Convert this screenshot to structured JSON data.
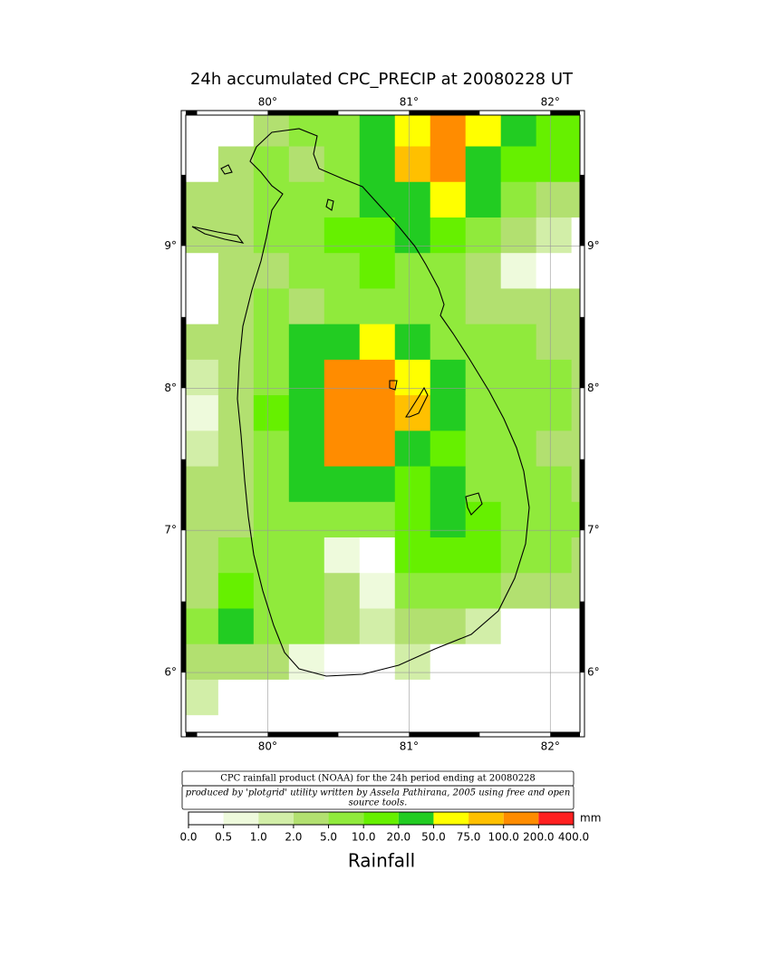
{
  "chart_data": {
    "type": "heatmap",
    "title": "24h accumulated CPC_PRECIP  at 20080228 UT",
    "xlim": [
      79.42,
      82.21
    ],
    "ylim": [
      5.58,
      9.92
    ],
    "xticks": [
      {
        "value": 80,
        "label": "80°"
      },
      {
        "value": 81,
        "label": "81°"
      },
      {
        "value": 82,
        "label": "82°"
      }
    ],
    "yticks": [
      {
        "value": 6,
        "label": "6°"
      },
      {
        "value": 7,
        "label": "7°"
      },
      {
        "value": 8,
        "label": "8°"
      },
      {
        "value": 9,
        "label": "9°"
      }
    ],
    "grid": true,
    "lon": [
      79.525,
      79.775,
      80.025,
      80.275,
      80.525,
      80.775,
      81.025,
      81.275,
      81.525,
      81.775,
      82.025,
      82.275
    ],
    "lat": [
      9.825,
      9.575,
      9.325,
      9.075,
      8.825,
      8.575,
      8.325,
      8.075,
      7.825,
      7.575,
      7.325,
      7.075,
      6.825,
      6.575,
      6.325,
      6.075,
      5.825,
      5.575
    ],
    "values": [
      [
        0,
        0,
        3,
        5,
        8,
        25,
        60,
        120,
        70,
        25,
        15,
        10
      ],
      [
        0,
        2,
        5,
        4,
        8,
        30,
        80,
        110,
        30,
        15,
        10,
        10
      ],
      [
        2,
        3,
        6,
        5,
        8,
        20,
        40,
        60,
        20,
        8,
        4,
        3
      ],
      [
        2,
        4,
        6,
        8,
        10,
        15,
        20,
        15,
        6,
        2,
        1,
        0
      ],
      [
        0,
        2,
        4,
        5,
        8,
        10,
        8,
        5,
        3,
        0.5,
        0,
        0
      ],
      [
        0,
        3,
        5,
        4,
        8,
        8,
        6,
        5,
        4,
        3,
        3,
        2
      ],
      [
        2,
        3,
        5,
        20,
        30,
        60,
        40,
        8,
        5,
        5,
        4,
        3
      ],
      [
        1,
        4,
        8,
        30,
        120,
        130,
        60,
        20,
        6,
        5,
        5,
        4
      ],
      [
        0.5,
        3,
        10,
        40,
        150,
        150,
        80,
        25,
        8,
        5,
        5,
        4
      ],
      [
        1,
        3,
        8,
        25,
        120,
        100,
        40,
        12,
        6,
        5,
        4,
        3
      ],
      [
        3,
        4,
        6,
        20,
        30,
        25,
        15,
        20,
        8,
        6,
        5,
        4
      ],
      [
        3,
        4,
        6,
        8,
        5,
        8,
        10,
        25,
        12,
        7,
        6,
        5
      ],
      [
        3,
        5,
        6,
        5,
        0.5,
        0.3,
        12,
        15,
        10,
        6,
        5,
        4
      ],
      [
        4,
        10,
        8,
        6,
        3,
        0.5,
        8,
        8,
        6,
        4,
        3,
        2
      ],
      [
        5,
        20,
        8,
        5,
        2,
        1,
        3,
        2,
        1,
        0,
        0,
        0
      ],
      [
        2,
        4,
        3,
        0.5,
        0,
        0,
        1,
        0,
        0,
        0,
        0,
        0
      ],
      [
        1,
        0,
        0,
        0,
        0,
        0,
        0,
        0,
        0,
        0,
        0,
        0
      ],
      [
        0,
        0,
        0,
        0,
        0,
        0,
        0,
        0,
        0,
        0,
        0,
        0
      ]
    ],
    "levels": [
      {
        "value": 0,
        "label": "0.0"
      },
      {
        "value": 0.5,
        "label": "0.5"
      },
      {
        "value": 1,
        "label": "1.0"
      },
      {
        "value": 2,
        "label": "2.0"
      },
      {
        "value": 5,
        "label": "5.0"
      },
      {
        "value": 10,
        "label": "10.0"
      },
      {
        "value": 20,
        "label": "20.0"
      },
      {
        "value": 50,
        "label": "50.0"
      },
      {
        "value": 75,
        "label": "75.0"
      },
      {
        "value": 100,
        "label": "100.0"
      },
      {
        "value": 200,
        "label": "200.0"
      },
      {
        "value": 400,
        "label": "400.0"
      }
    ],
    "colors": [
      "#ffffff",
      "#eefadc",
      "#d2eea8",
      "#b2e070",
      "#90ea3c",
      "#66f000",
      "#22cc22",
      "#ffff00",
      "#ffc000",
      "#ff8c00",
      "#ff2020"
    ],
    "colorbar_unit": "mm",
    "colorbar_label": "Rainfall",
    "caption": "CPC rainfall product (NOAA) for the 24h period ending at 20080228",
    "credit": [
      "produced by 'plotgrid' utility written by Assela Pathirana, 2005 using free and open",
      "source tools."
    ]
  }
}
